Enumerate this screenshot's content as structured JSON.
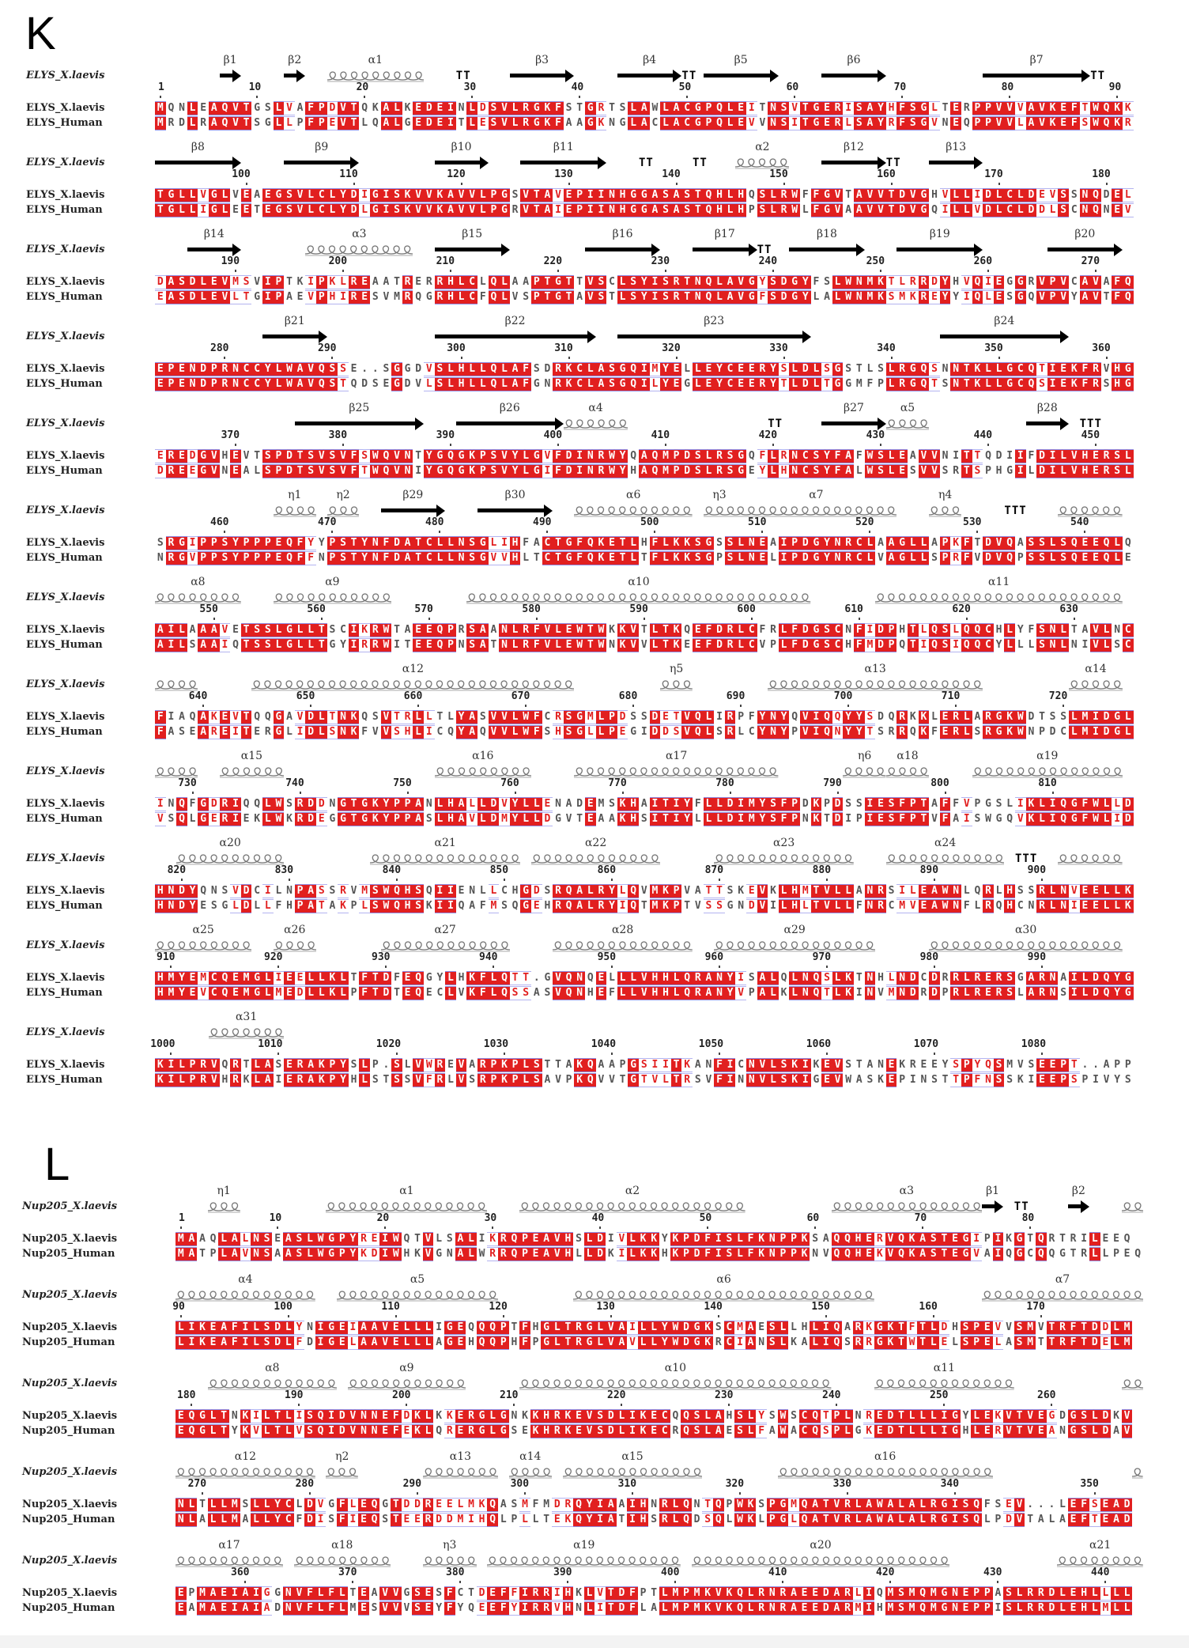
{
  "panels": [
    {
      "letter": "K",
      "ss_name": "ELYS_X.laevis",
      "names": [
        "ELYS_X.laevis",
        "ELYS_Human"
      ],
      "blocks": [
        {
          "ss": [
            {
              "t": "b",
              "l": "β1",
              "s": 6,
              "e": 7
            },
            {
              "t": "b",
              "l": "β2",
              "s": 12,
              "e": 13
            },
            {
              "t": "a",
              "l": "α1",
              "s": 16,
              "e": 24
            },
            {
              "t": "t",
              "l": "TT",
              "s": 28,
              "e": 29
            },
            {
              "t": "b",
              "l": "β3",
              "s": 33,
              "e": 38
            },
            {
              "t": "b",
              "l": "β4",
              "s": 43,
              "e": 48
            },
            {
              "t": "t",
              "l": "TT",
              "s": 49,
              "e": 50
            },
            {
              "t": "b",
              "l": "β5",
              "s": 51,
              "e": 57
            },
            {
              "t": "b",
              "l": "β6",
              "s": 62,
              "e": 67
            },
            {
              "t": "b",
              "l": "β7",
              "s": 77,
              "e": 86
            },
            {
              "t": "t",
              "l": "TT",
              "s": 87,
              "e": 88
            }
          ],
          "seqs": [
            "MQNLEAQVTGSLVAFPDVTQKALKEDEINLDSVLRGKFSTGRTSLAWLACGPQLEITNSVTGERISAYHFSGLTERPPVVVAVKEFTWQKK",
            "MRDLRAQVTSGLLPFPEVTLQALGEDEITLESVLRGKFAAGKNGLACLACGPQLEVVNSITGERLSAYRFSGVNEQPPVVLAVKEFSWQKR"
          ]
        },
        {
          "ss": [
            {
              "t": "b",
              "l": "β8",
              "s": 0,
              "e": 7
            },
            {
              "t": "b",
              "l": "β9",
              "s": 12,
              "e": 18
            },
            {
              "t": "b",
              "l": "β10",
              "s": 26,
              "e": 30
            },
            {
              "t": "b",
              "l": "β11",
              "s": 34,
              "e": 41
            },
            {
              "t": "t",
              "l": "TT",
              "s": 45,
              "e": 46
            },
            {
              "t": "t",
              "l": "TT",
              "s": 50,
              "e": 51
            },
            {
              "t": "a",
              "l": "α2",
              "s": 54,
              "e": 58
            },
            {
              "t": "b",
              "l": "β12",
              "s": 62,
              "e": 67
            },
            {
              "t": "t",
              "l": "TT",
              "s": 68,
              "e": 69
            },
            {
              "t": "b",
              "l": "β13",
              "s": 72,
              "e": 76
            }
          ],
          "seqs": [
            "TGLLVGLVEAEGSVLCLYDIGISKVVKAVVLPGSVTAVEPIINHGGASASTQHLHQSLRWFFGVTAVVTDVGHVLLIDLCLDEVSSNQDEL",
            "TGLLIGLEETEGSVLCLYDLGISKVVKAVVLPGRVTAIEPIINHGGASASTQHLHPSLRWLFGVAAVVTDVGQILLVDLCLDDLSCNQNEV"
          ]
        },
        {
          "ss": [
            {
              "t": "b",
              "l": "β14",
              "s": 3,
              "e": 7
            },
            {
              "t": "a",
              "l": "α3",
              "s": 14,
              "e": 23
            },
            {
              "t": "b",
              "l": "β15",
              "s": 26,
              "e": 32
            },
            {
              "t": "b",
              "l": "β16",
              "s": 40,
              "e": 46
            },
            {
              "t": "b",
              "l": "β17",
              "s": 50,
              "e": 55
            },
            {
              "t": "t",
              "l": "TT",
              "s": 56,
              "e": 57
            },
            {
              "t": "b",
              "l": "β18",
              "s": 59,
              "e": 65
            },
            {
              "t": "b",
              "l": "β19",
              "s": 69,
              "e": 76
            },
            {
              "t": "b",
              "l": "β20",
              "s": 83,
              "e": 89
            }
          ],
          "seqs": [
            "DASDLEVMSVIPTKIPKLREAATRERRHLCLQLAAPTGTTVSCLSYISRTNQLAVGYSDGYFSLWNMKTLRRDYHVQIEGGRVPVCAVAFQ",
            "EASDLEVLTGIPAEVPHIRESVMRQGRHLCFQLVSPTGTAVSTLSYISRTNQLAVGFSDGYLALWNMKSMKREYYIQLESGQVPVYAVTFQ"
          ]
        },
        {
          "ss": [
            {
              "t": "b",
              "l": "β21",
              "s": 10,
              "e": 15
            },
            {
              "t": "b",
              "l": "β22",
              "s": 26,
              "e": 40
            },
            {
              "t": "b",
              "l": "β23",
              "s": 43,
              "e": 60
            },
            {
              "t": "b",
              "l": "β24",
              "s": 73,
              "e": 84
            }
          ],
          "seqs": [
            "EPENDPRNCCYLWAVQSSE..SGGDVSLHLLQLAFSDRKCLASGQIMYELLEYCEERYSLDLSGSTLSLRGQSNNTKLLGCQTIEKFRVHG",
            "EPENDPRNCCYLWAVQSTQDSEGDVLSLHLLQLAFGNRKCLASGQILYEGLEYCEERYTLDLTGGMFPLRGQTSNTKLLGCQSIEKFRSHG"
          ]
        },
        {
          "ss": [
            {
              "t": "b",
              "l": "β25",
              "s": 13,
              "e": 24
            },
            {
              "t": "b",
              "l": "β26",
              "s": 28,
              "e": 37
            },
            {
              "t": "a",
              "l": "α4",
              "s": 38,
              "e": 43
            },
            {
              "t": "t",
              "l": "TT",
              "s": 57,
              "e": 58
            },
            {
              "t": "b",
              "l": "β27",
              "s": 62,
              "e": 67
            },
            {
              "t": "a",
              "l": "α5",
              "s": 68,
              "e": 71
            },
            {
              "t": "b",
              "l": "β28",
              "s": 81,
              "e": 84
            },
            {
              "t": "t",
              "l": "TTT",
              "s": 86,
              "e": 88
            }
          ],
          "seqs": [
            "EREDGVHEVTSPDTSVSVFSWQVNTYGQGKPSVYLGVFDINRWYQAQMPDSLRSGQFLRNCSYFAFWSLEAVVNITTQDIIFDILVHERSL",
            "DREEGVNEALSPDTSVSVFTWQVNIYGQGKPSVYLGIFDINRWYHAQMPDSLRSGEYLHNCSYFALWSLESVVSRTSPHGILDILVHERSL"
          ]
        },
        {
          "ss": [
            {
              "t": "a",
              "l": "η1",
              "s": 11,
              "e": 14
            },
            {
              "t": "a",
              "l": "η2",
              "s": 16,
              "e": 18
            },
            {
              "t": "b",
              "l": "β29",
              "s": 21,
              "e": 26
            },
            {
              "t": "b",
              "l": "β30",
              "s": 30,
              "e": 36
            },
            {
              "t": "a",
              "l": "α6",
              "s": 39,
              "e": 49
            },
            {
              "t": "a",
              "l": "η3",
              "s": 51,
              "e": 53
            },
            {
              "t": "a",
              "l": "α7",
              "s": 54,
              "e": 68
            },
            {
              "t": "a",
              "l": "η4",
              "s": 72,
              "e": 74
            },
            {
              "t": "t",
              "l": "TTT",
              "s": 79,
              "e": 81
            },
            {
              "t": "a",
              "l": "",
              "s": 84,
              "e": 89
            }
          ],
          "seqs": [
            "SRGIPPSYPPPEQFYYPSTYNFDATCLLNSGLIHFACTGFQKETLHFLKKSGSSLNEAIPDGYNRCLAAGLLAPKFTDVQASSLSQEEQLQ",
            "NRGVPPSYPPPEQFFNPSTYNFDATCLLNSGVVHLTCTGFQKETLTFLKKSGPSLNELIPDGYNRCLVAGLLSPRFVDVQPSSLSQEEQLE"
          ]
        },
        {
          "ss": [
            {
              "t": "a",
              "l": "α8",
              "s": 0,
              "e": 7
            },
            {
              "t": "a",
              "l": "α9",
              "s": 11,
              "e": 21
            },
            {
              "t": "a",
              "l": "α10",
              "s": 29,
              "e": 60
            },
            {
              "t": "a",
              "l": "α11",
              "s": 67,
              "e": 89
            }
          ],
          "seqs": [
            "AILAAAVETSSLGLLTSCIKRWTAEEQPRSAANLRFVLEWTWKKVTLTKQEFDRLCFRLFDGSCNFIDPHTLQSLQQCHLYFSNLTAVLNC",
            "AILSAAIQTSSLGLLTGYIRRWITEEQPNSATNLRFVLEWTWNKVVLTKEEFDRLCVPLFDGSCHFMDPQTIQSIQQCYLLLSNLNIVLSC"
          ]
        },
        {
          "ss": [
            {
              "t": "a",
              "l": "",
              "s": 0,
              "e": 3
            },
            {
              "t": "a",
              "l": "α12",
              "s": 9,
              "e": 38
            },
            {
              "t": "a",
              "l": "η5",
              "s": 47,
              "e": 49
            },
            {
              "t": "a",
              "l": "α13",
              "s": 57,
              "e": 76
            },
            {
              "t": "a",
              "l": "α14",
              "s": 85,
              "e": 89
            }
          ],
          "seqs": [
            "FIAQAKEVTQQGAVDLTNKQSVTRLLTLYASVVLWFCRSGMLPDSSDETVQLIRPFYNYQVIQQYYSDQRKKLERLARGKWDTSSLMIDGL",
            "FASEAREITERGLIDLSNKFVVSHLICQYAQVVLWFSHSGLLPEGIDDSVQLSRLCYNYPVIQNYYTSRRQKFERLSRGKWNPDCLMIDGL"
          ]
        },
        {
          "ss": [
            {
              "t": "a",
              "l": "",
              "s": 0,
              "e": 3
            },
            {
              "t": "a",
              "l": "α15",
              "s": 6,
              "e": 11
            },
            {
              "t": "a",
              "l": "α16",
              "s": 26,
              "e": 34
            },
            {
              "t": "a",
              "l": "α17",
              "s": 39,
              "e": 57
            },
            {
              "t": "a",
              "l": "η6",
              "s": 64,
              "e": 67
            },
            {
              "t": "a",
              "l": "α18",
              "s": 68,
              "e": 71
            },
            {
              "t": "a",
              "l": "α19",
              "s": 76,
              "e": 89
            }
          ],
          "seqs": [
            "INQFGDRIQQLWSRDDNGTGKYPPANLHALLDVYLLENADEMSKHAITIYFLLDIMYSFPDKPDSSIESFPTAFFVPGSLIKLIQGFWLLD",
            "VSQLGERIEKLWKRDEGGTGKYPPASLHAVLDMYLLDGVTEAAKHSITIYLLLDIMYSFPNKTDIPIESFPTVFAISWGQVKLIQGFWLID"
          ]
        },
        {
          "ss": [
            {
              "t": "a",
              "l": "α20",
              "s": 2,
              "e": 11
            },
            {
              "t": "a",
              "l": "α21",
              "s": 20,
              "e": 33
            },
            {
              "t": "a",
              "l": "α22",
              "s": 35,
              "e": 46
            },
            {
              "t": "a",
              "l": "α23",
              "s": 52,
              "e": 64
            },
            {
              "t": "a",
              "l": "α24",
              "s": 68,
              "e": 78
            },
            {
              "t": "t",
              "l": "TTT",
              "s": 80,
              "e": 82
            },
            {
              "t": "a",
              "l": "",
              "s": 84,
              "e": 89
            }
          ],
          "seqs": [
            "HNDYQNSVDCILNPASSRVMSWQHSQIIENLLCHGDSRQALRYLQVMKPVATTSKEVKLHMTVLLANRSILEAWNLQRLHSSRLNVEELLK",
            "HNDYESGLDLLFHPATAKPLSWQHSKIIQAFMSQGEHRQALRYIQTMKPTVSSGNDVILHLTVLLFNRCMVEAWNFLRQHCNRLNIEELLK"
          ]
        },
        {
          "ss": [
            {
              "t": "a",
              "l": "α25",
              "s": 0,
              "e": 8
            },
            {
              "t": "a",
              "l": "α26",
              "s": 11,
              "e": 14
            },
            {
              "t": "a",
              "l": "α27",
              "s": 21,
              "e": 32
            },
            {
              "t": "a",
              "l": "α28",
              "s": 37,
              "e": 49
            },
            {
              "t": "a",
              "l": "α29",
              "s": 52,
              "e": 66
            },
            {
              "t": "a",
              "l": "α30",
              "s": 72,
              "e": 89
            }
          ],
          "seqs": [
            "HMYEMCQEMGLIEELLKLTFTDFEQGYLHKFLQTT.GVQNQELLLVHHLQRANYISALQLNQSLKTNHLNDCDRRLRERSGARNAILDQYG",
            "HMYEVCQEMGLMEDLLKLPFTDTEQECLVKFLQSSASVQNHEFLLVHHLQRANYVPALKLNQTLKINVMNDRDPRLRERSLARNSILDQYG"
          ]
        },
        {
          "ss": [
            {
              "t": "a",
              "l": "α31",
              "s": 5,
              "e": 11
            }
          ],
          "seqs": [
            "KILPRVQRTLASERAKPYSLP.SLVWREVARPKPLSTTAKQAAPGSIITKANFICNVLSKIKEVSTANEKREEYSPYQSMVSEEPT..APP",
            "KILPRVHRKLAIERAKPYHLSTSSVFRLVSRPKPLSAVPKQVVTGTVLTRSVFINNVLSKIGEVWASKEPINSTTPFNSSKIEEPSPIVYS"
          ]
        }
      ]
    },
    {
      "letter": "L",
      "ss_name": "Nup205_X.laevis",
      "names": [
        "Nup205_X.laevis",
        "Nup205_Human"
      ],
      "blocks": [
        {
          "ss": [
            {
              "t": "a",
              "l": "η1",
              "s": 3,
              "e": 5
            },
            {
              "t": "a",
              "l": "α1",
              "s": 14,
              "e": 28
            },
            {
              "t": "a",
              "l": "α2",
              "s": 32,
              "e": 52
            },
            {
              "t": "a",
              "l": "α3",
              "s": 61,
              "e": 74
            },
            {
              "t": "b",
              "l": "β1",
              "s": 75,
              "e": 76
            },
            {
              "t": "t",
              "l": "TT",
              "s": 78,
              "e": 79
            },
            {
              "t": "b",
              "l": "β2",
              "s": 83,
              "e": 84
            },
            {
              "t": "a",
              "l": "",
              "s": 88,
              "e": 89
            }
          ],
          "seqs": [
            "MAAQLALNSEASLWGPYREIWQTVLSALIKRQPEAVHSLDIVLKKYKPDFISLFKNPPKSAQQHERVQKASTEGIPIKGTQRTRILEEQ",
            "MATPLAVNSAASLWGPYKDIWHKVGNALWRRQPEAVHLLDKILKKHKPDFISLFKNPPKNVQQHEKVQKASTEGVAIQGCQQGTRLLPEQ"
          ]
        },
        {
          "ss": [
            {
              "t": "a",
              "l": "α4",
              "s": 0,
              "e": 12
            },
            {
              "t": "a",
              "l": "α5",
              "s": 15,
              "e": 29
            },
            {
              "t": "a",
              "l": "α6",
              "s": 37,
              "e": 64
            },
            {
              "t": "a",
              "l": "α7",
              "s": 75,
              "e": 89
            }
          ],
          "seqs": [
            "LIKEAFILSDLYNIGEIAAVELLLIGEQQQPTFHGLTRGLVAILLYWDGKSCMAESLLHLIQARKGKTFTLDHSPEVVSMVTRFTDDLM",
            "LIKEAFILSDLFDIGELAAVELLLAGEHQQPHFPGLTRGLVAVLLYWDGKRCIANSLKALIQSRRGKTWTLELSPELASMTTRFTDELM"
          ]
        },
        {
          "ss": [
            {
              "t": "a",
              "l": "α8",
              "s": 3,
              "e": 14
            },
            {
              "t": "a",
              "l": "α9",
              "s": 16,
              "e": 26
            },
            {
              "t": "a",
              "l": "α10",
              "s": 32,
              "e": 60
            },
            {
              "t": "a",
              "l": "α11",
              "s": 65,
              "e": 77
            },
            {
              "t": "a",
              "l": "",
              "s": 88,
              "e": 89
            }
          ],
          "seqs": [
            "EQGLTNKILTLISQIDVNNEFDKLKKERGLGNKKHRKEVSDLIKECQQSLAHSLYSWSCQTPLNREDTLLLIGYLEKVTVEGDGSLDKV",
            "EQGLTYKVLTLVSQIDVNNEFEKLQRERGLGSEKHRKEVSDLIKECRQSLAESLFAWACQSPLGKEDTLLLIGHLERVTVEANGSLDAV"
          ]
        },
        {
          "ss": [
            {
              "t": "a",
              "l": "α12",
              "s": 0,
              "e": 12
            },
            {
              "t": "a",
              "l": "η2",
              "s": 14,
              "e": 16
            },
            {
              "t": "a",
              "l": "α13",
              "s": 23,
              "e": 29
            },
            {
              "t": "a",
              "l": "α14",
              "s": 31,
              "e": 34
            },
            {
              "t": "a",
              "l": "α15",
              "s": 36,
              "e": 48
            },
            {
              "t": "a",
              "l": "α16",
              "s": 56,
              "e": 75
            },
            {
              "t": "a",
              "l": "",
              "s": 89,
              "e": 89
            }
          ],
          "seqs": [
            "NLTLLMSLLYCLDVGFLEQGTDDREELMKQASMFMDRQYIAAIHNRLQNTQPWKSPGMQATVRLAWALALRGISQFSEV...LEFSEAD",
            "NLALLMALLYCFDISFIEQSTEERDDMIHQLPLLTEKQYIATIHSRLQDSQLWKLPGLQATVRLAWALALRGISQLPDVTALAEFTEAD"
          ]
        },
        {
          "ss": [
            {
              "t": "a",
              "l": "α17",
              "s": 0,
              "e": 9
            },
            {
              "t": "a",
              "l": "α18",
              "s": 11,
              "e": 19
            },
            {
              "t": "a",
              "l": "η3",
              "s": 23,
              "e": 27
            },
            {
              "t": "a",
              "l": "α19",
              "s": 29,
              "e": 46
            },
            {
              "t": "a",
              "l": "α20",
              "s": 48,
              "e": 71
            },
            {
              "t": "a",
              "l": "α21",
              "s": 82,
              "e": 89
            }
          ],
          "seqs": [
            "EPMAEIAIGGNVFLFLTEAVVGSESFCTDEFFIRRIHKLVTDFPTLMPMKVKQLRNRAEEDARLIQMSMQMGNEPPASLRRDLEHLLLL",
            "EAMAEIAIADNVFLFLMESVVVSEYFYQEEFYIRRVHNLITDFLALMPMKVKQLRNRAEEDARMIHMSMQMGNEPPISLRRDLEHLMLL"
          ]
        }
      ]
    }
  ],
  "colors": {
    "identical_bg": "#e11f1f",
    "similar_text": "#e11f1f",
    "frame": "#8f8fe6"
  }
}
